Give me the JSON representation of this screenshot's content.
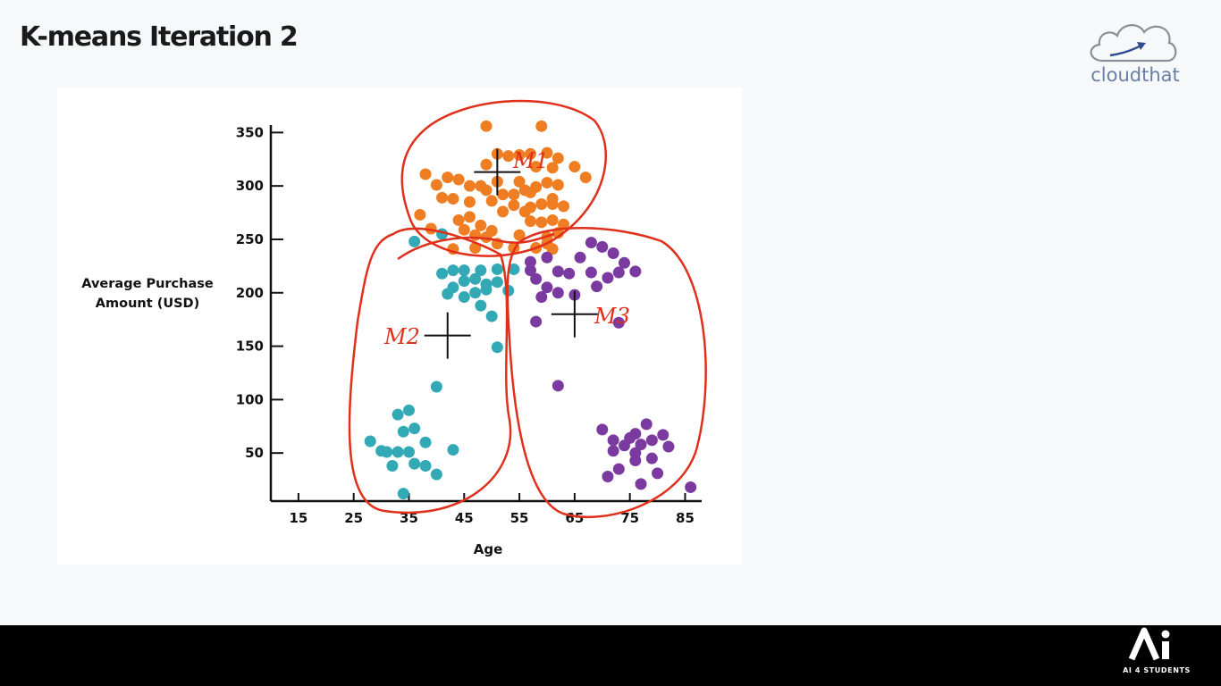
{
  "slide": {
    "title": "K-means Iteration 2"
  },
  "brand": {
    "name": "cloudthat",
    "icon": "cloud-arrow-icon"
  },
  "footer": {
    "logo_text": "Ai",
    "tagline": "AI 4 STUDENTS",
    "background": "#000000"
  },
  "chart_data": {
    "type": "scatter",
    "xlabel": "Age",
    "ylabel_lines": [
      "Average Purchase",
      "Amount (USD)"
    ],
    "x_ticks": [
      15,
      25,
      35,
      45,
      55,
      65,
      75,
      85
    ],
    "y_ticks": [
      50,
      100,
      150,
      200,
      250,
      300,
      350
    ],
    "xlim": [
      10,
      88
    ],
    "ylim": [
      5,
      357
    ],
    "grid": false,
    "legend": "none",
    "series": [
      {
        "color": "#ef7d22",
        "points": [
          [
            49,
            356
          ],
          [
            59,
            356
          ],
          [
            51,
            330
          ],
          [
            53,
            328
          ],
          [
            55,
            329
          ],
          [
            57,
            330
          ],
          [
            60,
            331
          ],
          [
            62,
            326
          ],
          [
            65,
            318
          ],
          [
            67,
            308
          ],
          [
            58,
            318
          ],
          [
            61,
            317
          ],
          [
            49,
            320
          ],
          [
            51,
            304
          ],
          [
            55,
            304
          ],
          [
            60,
            303
          ],
          [
            58,
            299
          ],
          [
            62,
            301
          ],
          [
            57,
            294
          ],
          [
            61,
            288
          ],
          [
            54,
            292
          ],
          [
            56,
            296
          ],
          [
            49,
            296
          ],
          [
            52,
            292
          ],
          [
            38,
            311
          ],
          [
            40,
            301
          ],
          [
            42,
            308
          ],
          [
            44,
            306
          ],
          [
            46,
            300
          ],
          [
            48,
            300
          ],
          [
            41,
            289
          ],
          [
            43,
            288
          ],
          [
            46,
            285
          ],
          [
            50,
            286
          ],
          [
            54,
            282
          ],
          [
            56,
            276
          ],
          [
            57,
            280
          ],
          [
            59,
            283
          ],
          [
            61,
            283
          ],
          [
            63,
            281
          ],
          [
            52,
            276
          ],
          [
            37,
            273
          ],
          [
            39,
            260
          ],
          [
            44,
            268
          ],
          [
            46,
            271
          ],
          [
            48,
            263
          ],
          [
            50,
            258
          ],
          [
            45,
            259
          ],
          [
            47,
            254
          ],
          [
            49,
            252
          ],
          [
            57,
            267
          ],
          [
            59,
            266
          ],
          [
            61,
            268
          ],
          [
            63,
            264
          ],
          [
            62,
            256
          ],
          [
            60,
            252
          ],
          [
            55,
            254
          ],
          [
            51,
            246
          ],
          [
            54,
            242
          ],
          [
            58,
            242
          ],
          [
            61,
            241
          ],
          [
            60,
            246
          ],
          [
            47,
            242
          ],
          [
            43,
            241
          ]
        ]
      },
      {
        "color": "#32a9b5",
        "points": [
          [
            36,
            248
          ],
          [
            41,
            255
          ],
          [
            41,
            218
          ],
          [
            43,
            221
          ],
          [
            45,
            221
          ],
          [
            48,
            221
          ],
          [
            51,
            222
          ],
          [
            54,
            222
          ],
          [
            43,
            205
          ],
          [
            45,
            211
          ],
          [
            47,
            213
          ],
          [
            49,
            208
          ],
          [
            51,
            210
          ],
          [
            42,
            199
          ],
          [
            45,
            196
          ],
          [
            47,
            200
          ],
          [
            49,
            203
          ],
          [
            53,
            202
          ],
          [
            48,
            188
          ],
          [
            50,
            178
          ],
          [
            51,
            149
          ],
          [
            40,
            112
          ],
          [
            43,
            53
          ],
          [
            28,
            61
          ],
          [
            30,
            52
          ],
          [
            32,
            38
          ],
          [
            33,
            86
          ],
          [
            34,
            70
          ],
          [
            35,
            90
          ],
          [
            31,
            51
          ],
          [
            33,
            51
          ],
          [
            35,
            51
          ],
          [
            36,
            73
          ],
          [
            38,
            60
          ],
          [
            38,
            38
          ],
          [
            40,
            30
          ],
          [
            34,
            12
          ],
          [
            36,
            40
          ]
        ]
      },
      {
        "color": "#7a3a9f",
        "points": [
          [
            57,
            229
          ],
          [
            57,
            221
          ],
          [
            58,
            213
          ],
          [
            60,
            233
          ],
          [
            62,
            220
          ],
          [
            64,
            218
          ],
          [
            66,
            233
          ],
          [
            68,
            247
          ],
          [
            70,
            243
          ],
          [
            72,
            237
          ],
          [
            74,
            228
          ],
          [
            76,
            220
          ],
          [
            60,
            205
          ],
          [
            62,
            200
          ],
          [
            65,
            198
          ],
          [
            68,
            219
          ],
          [
            71,
            214
          ],
          [
            73,
            219
          ],
          [
            59,
            196
          ],
          [
            69,
            206
          ],
          [
            58,
            173
          ],
          [
            73,
            172
          ],
          [
            62,
            113
          ],
          [
            70,
            72
          ],
          [
            72,
            62
          ],
          [
            72,
            52
          ],
          [
            74,
            57
          ],
          [
            75,
            64
          ],
          [
            76,
            68
          ],
          [
            78,
            77
          ],
          [
            77,
            58
          ],
          [
            79,
            62
          ],
          [
            81,
            67
          ],
          [
            82,
            56
          ],
          [
            76,
            50
          ],
          [
            79,
            45
          ],
          [
            73,
            35
          ],
          [
            76,
            43
          ],
          [
            80,
            31
          ],
          [
            71,
            28
          ],
          [
            77,
            21
          ],
          [
            86,
            18
          ]
        ]
      }
    ],
    "centroids": [
      {
        "label": "M1",
        "x": 51,
        "y": 313
      },
      {
        "label": "M2",
        "x": 42,
        "y": 160
      },
      {
        "label": "M3",
        "x": 65,
        "y": 180
      }
    ],
    "hand_labels": [
      "M1",
      "M2",
      "M3"
    ],
    "annotation_color": "#e0301c"
  }
}
